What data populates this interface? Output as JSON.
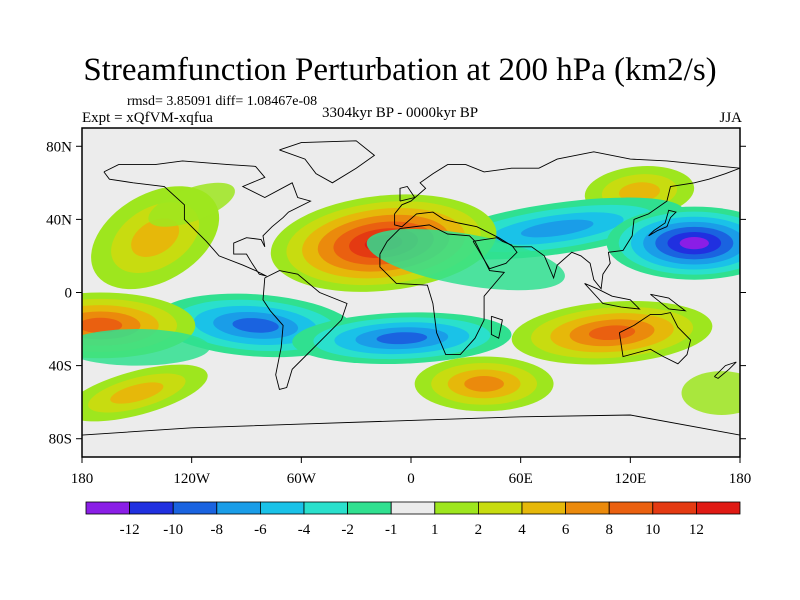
{
  "title": "Streamfunction Perturbation at 200 hPa (km2/s)",
  "stats_text": "rmsd= 3.85091 diff= 1.08467e-08",
  "experiment": "Expt = xQfVM-xqfua",
  "period": "3304kyr BP - 0000kyr BP",
  "season": "JJA",
  "lat_labels": [
    "80N",
    "40N",
    "0",
    "40S",
    "80S"
  ],
  "lon_labels": [
    "180",
    "120W",
    "60W",
    "0",
    "60E",
    "120E",
    "180"
  ],
  "colorbar": {
    "labels": [
      "-12",
      "-10",
      "-8",
      "-6",
      "-4",
      "-2",
      "-1",
      "1",
      "2",
      "4",
      "6",
      "8",
      "10",
      "12"
    ],
    "colors": [
      "#8a1ee6",
      "#2030e0",
      "#1a63e0",
      "#1a9de8",
      "#1ac2e8",
      "#2ae0cc",
      "#30e090",
      "#ececec",
      "#9ee61e",
      "#c8dc10",
      "#e6b80a",
      "#eb8a0c",
      "#ea6010",
      "#e43a12",
      "#e01a14"
    ]
  },
  "chart_data": {
    "type": "heatmap",
    "title": "Streamfunction Perturbation at 200 hPa (km2/s)",
    "units": "km2/s",
    "level": "200 hPa",
    "season": "JJA",
    "period": "3304kyr BP - 0000kyr BP",
    "rmsd": 3.85091,
    "diff": 1.08467e-08,
    "lon_range": [
      -180,
      180
    ],
    "lat_range": [
      -90,
      90
    ],
    "contour_levels": [
      -12,
      -10,
      -8,
      -6,
      -4,
      -2,
      -1,
      1,
      2,
      4,
      6,
      8,
      10,
      12
    ],
    "features": [
      {
        "name": "north-atlantic-africa-high",
        "lon": -15,
        "lat": 27,
        "peak": 12
      },
      {
        "name": "west-pacific-low",
        "lon": 155,
        "lat": 27,
        "peak": -10
      },
      {
        "name": "south-pacific-high",
        "lon": -170,
        "lat": -18,
        "peak": 8
      },
      {
        "name": "australia-high",
        "lon": 110,
        "lat": -22,
        "peak": 8
      },
      {
        "name": "south-america-low",
        "lon": -85,
        "lat": -18,
        "peak": -6
      },
      {
        "name": "south-atlantic-low",
        "lon": -5,
        "lat": -25,
        "peak": -6
      },
      {
        "name": "south-indian-high",
        "lon": 40,
        "lat": -50,
        "peak": 6
      },
      {
        "name": "north-pacific-high",
        "lon": -140,
        "lat": 30,
        "peak": 4
      },
      {
        "name": "east-siberia-high",
        "lon": 125,
        "lat": 55,
        "peak": 4
      },
      {
        "name": "southern-ocean-high",
        "lon": -150,
        "lat": -55,
        "peak": 4
      },
      {
        "name": "central-asia-low",
        "lon": 80,
        "lat": 35,
        "peak": -4
      }
    ]
  }
}
